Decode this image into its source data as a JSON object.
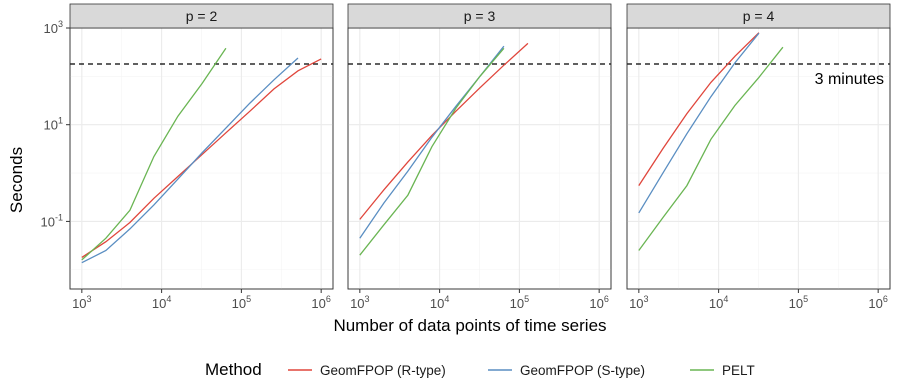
{
  "chart_data": {
    "type": "line",
    "xlabel": "Number of data points of time series",
    "ylabel": "Seconds",
    "x_scale": "log10",
    "y_scale": "log10",
    "xlim": [
      1000,
      1000000
    ],
    "ylim": [
      0.004,
      1000
    ],
    "x_ticks": [
      1000,
      10000,
      100000,
      1000000
    ],
    "y_ticks": [
      0.1,
      10,
      1000
    ],
    "grid": true,
    "colors": {
      "GeomFPOP (R-type)": "#e0463c",
      "GeomFPOP (S-type)": "#5a8ec2",
      "PELT": "#6ab553"
    },
    "legend": {
      "title": "Method",
      "position": "bottom",
      "entries": [
        "GeomFPOP (R-type)",
        "GeomFPOP (S-type)",
        "PELT"
      ]
    },
    "reference_line": {
      "y": 180,
      "style": "dashed",
      "label": "3 minutes",
      "label_panel": 2
    },
    "panels": [
      {
        "label": "p = 2",
        "series": [
          {
            "name": "GeomFPOP (R-type)",
            "x": [
              1000,
              2000,
              4000,
              8000,
              16000,
              32000,
              64000,
              128000,
              256000,
              512000,
              1000000
            ],
            "y": [
              0.018,
              0.038,
              0.095,
              0.3,
              0.85,
              2.4,
              6.8,
              19,
              55,
              130,
              230
            ]
          },
          {
            "name": "GeomFPOP (S-type)",
            "x": [
              1000,
              2000,
              4000,
              8000,
              16000,
              32000,
              64000,
              128000,
              256000,
              512000
            ],
            "y": [
              0.014,
              0.025,
              0.07,
              0.22,
              0.75,
              2.6,
              8.5,
              28,
              85,
              240
            ]
          },
          {
            "name": "PELT",
            "x": [
              1000,
              2000,
              4000,
              8000,
              16000,
              32000,
              64000
            ],
            "y": [
              0.016,
              0.045,
              0.17,
              2.2,
              15,
              70,
              380
            ]
          }
        ]
      },
      {
        "label": "p = 3",
        "series": [
          {
            "name": "GeomFPOP (R-type)",
            "x": [
              1000,
              2000,
              4000,
              8000,
              16000,
              32000,
              64000,
              128000
            ],
            "y": [
              0.11,
              0.45,
              1.7,
              6,
              19,
              58,
              170,
              480
            ]
          },
          {
            "name": "GeomFPOP (S-type)",
            "x": [
              1000,
              2000,
              4000,
              8000,
              16000,
              32000,
              64000
            ],
            "y": [
              0.045,
              0.24,
              1.1,
              5.5,
              24,
              100,
              420
            ]
          },
          {
            "name": "PELT",
            "x": [
              1000,
              2000,
              4000,
              8000,
              16000,
              32000,
              64000
            ],
            "y": [
              0.02,
              0.085,
              0.35,
              3.5,
              22,
              100,
              380
            ]
          }
        ]
      },
      {
        "label": "p = 4",
        "series": [
          {
            "name": "GeomFPOP (R-type)",
            "x": [
              1000,
              2000,
              4000,
              8000,
              16000,
              32000
            ],
            "y": [
              0.55,
              3.2,
              17,
              75,
              260,
              800
            ]
          },
          {
            "name": "GeomFPOP (S-type)",
            "x": [
              1000,
              2000,
              4000,
              8000,
              16000,
              32000
            ],
            "y": [
              0.15,
              1,
              6.5,
              38,
              190,
              780
            ]
          },
          {
            "name": "PELT",
            "x": [
              1000,
              2000,
              4000,
              8000,
              16000,
              32000,
              64000
            ],
            "y": [
              0.025,
              0.12,
              0.55,
              5,
              25,
              95,
              400
            ]
          }
        ]
      }
    ]
  }
}
